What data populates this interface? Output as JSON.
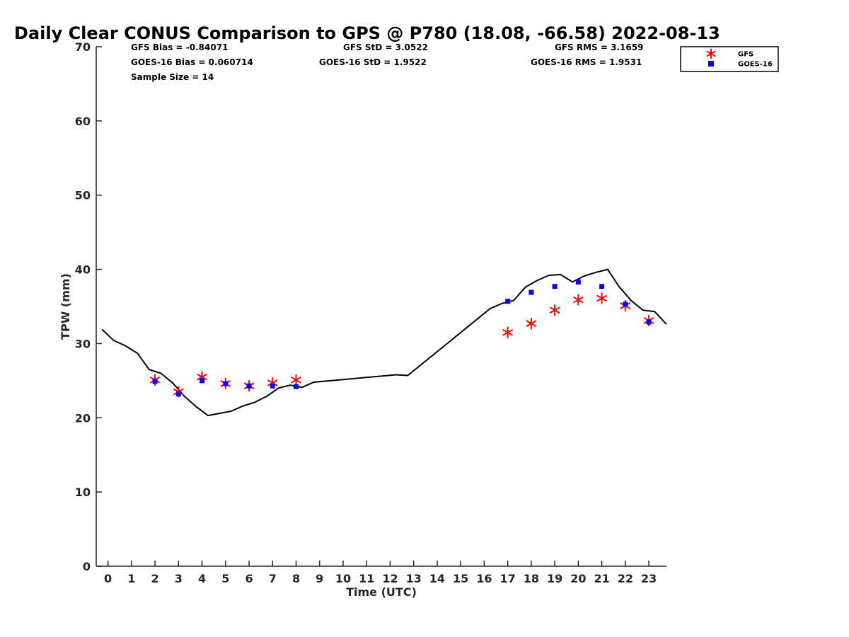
{
  "chart_data": {
    "type": "scatter",
    "title": "Daily Clear CONUS Comparison to GPS @ P780 (18.08, -66.58) 2022-08-13",
    "xlabel": "Time (UTC)",
    "ylabel": "TPW (mm)",
    "xlim": [
      -0.5,
      23.75
    ],
    "ylim": [
      0,
      70
    ],
    "xticks": [
      "0",
      "1",
      "2",
      "3",
      "4",
      "5",
      "6",
      "7",
      "8",
      "9",
      "10",
      "11",
      "12",
      "13",
      "14",
      "15",
      "16",
      "17",
      "18",
      "19",
      "20",
      "21",
      "22",
      "23"
    ],
    "yticks": [
      "0",
      "10",
      "20",
      "30",
      "40",
      "50",
      "60",
      "70"
    ],
    "grid": false,
    "legend_position": "top-right",
    "stats": {
      "gfs_bias": "GFS Bias = -0.84071",
      "gfs_std": "GFS StD = 3.0522",
      "gfs_rms": "GFS RMS = 3.1659",
      "goes_bias": "GOES-16 Bias = 0.060714",
      "goes_std": "GOES-16 StD = 1.9522",
      "goes_rms": "GOES-16 RMS = 1.9531",
      "sample_size": "Sample Size = 14"
    },
    "series": [
      {
        "name": "GFS",
        "marker": "asterisk",
        "color": "#ff0000",
        "x": [
          2,
          3,
          4,
          5,
          6,
          7,
          8,
          17,
          18,
          19,
          20,
          21,
          22,
          23
        ],
        "y": [
          25.1,
          23.5,
          25.5,
          24.6,
          24.3,
          24.7,
          25.1,
          31.5,
          32.7,
          34.5,
          35.9,
          36.1,
          35.1,
          33.1
        ]
      },
      {
        "name": "GOES-16",
        "marker": "square",
        "color": "#0000ff",
        "x": [
          2,
          3,
          4,
          5,
          6,
          7,
          8,
          17,
          18,
          19,
          20,
          21,
          22,
          23
        ],
        "y": [
          24.9,
          23.2,
          25.0,
          24.6,
          24.3,
          24.3,
          24.2,
          35.7,
          36.9,
          37.7,
          38.3,
          37.7,
          35.3,
          32.9
        ]
      },
      {
        "marker": "line",
        "color": "#000000",
        "x": [
          -0.25,
          0.25,
          0.75,
          1.25,
          1.75,
          2.25,
          2.75,
          3.25,
          3.75,
          4.25,
          4.75,
          5.25,
          5.75,
          6.25,
          6.75,
          7.25,
          7.75,
          8.25,
          8.75,
          12.25,
          12.75,
          16.25,
          16.75,
          17.25,
          17.75,
          18.25,
          18.75,
          19.25,
          19.75,
          20.25,
          20.75,
          21.25,
          21.75,
          22.25,
          22.75,
          23.25,
          23.75
        ],
        "y": [
          31.9,
          30.4,
          29.7,
          28.7,
          26.5,
          26.0,
          24.7,
          22.9,
          21.5,
          20.3,
          20.6,
          20.9,
          21.6,
          22.1,
          22.9,
          24.0,
          24.4,
          24.1,
          24.8,
          25.8,
          25.7,
          34.7,
          35.4,
          35.8,
          37.6,
          38.5,
          39.2,
          39.3,
          38.3,
          39.1,
          39.6,
          40.0,
          37.6,
          35.8,
          34.5,
          34.3,
          32.6
        ]
      }
    ]
  }
}
